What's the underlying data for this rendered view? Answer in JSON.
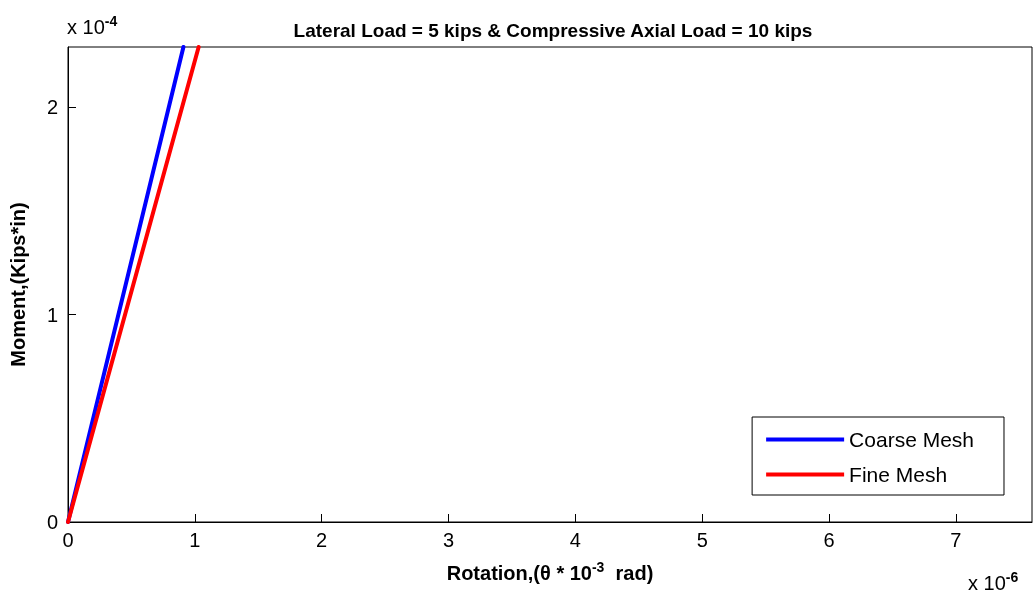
{
  "chart_data": {
    "type": "line",
    "title": "Lateral Load = 5 kips & Compressive Axial Load = 10 kips",
    "xlabel": "Rotation,(θ * 10$^{-3}$  rad)",
    "ylabel": "Moment,(Kips*in)",
    "annotations": [
      "x 10$^{-4}$",
      "x 10$^{-6}$"
    ],
    "series": [
      {
        "name": "Coarse Mesh",
        "color": "#0000ff",
        "x": [
          0,
          0.91
        ],
        "values": [
          0,
          2.29
        ]
      },
      {
        "name": "Fine Mesh",
        "color": "#ff0000",
        "x": [
          0,
          1.03
        ],
        "values": [
          0,
          2.29
        ]
      }
    ],
    "xlim": [
      0,
      7.6
    ],
    "xticks": [
      0,
      1,
      2,
      3,
      4,
      5,
      6,
      7
    ],
    "ylim": [
      0,
      2.29
    ],
    "yticks": [
      0,
      1,
      2
    ],
    "grid": false,
    "legend": "bottom right",
    "marker": "none",
    "line_style": "solid"
  }
}
